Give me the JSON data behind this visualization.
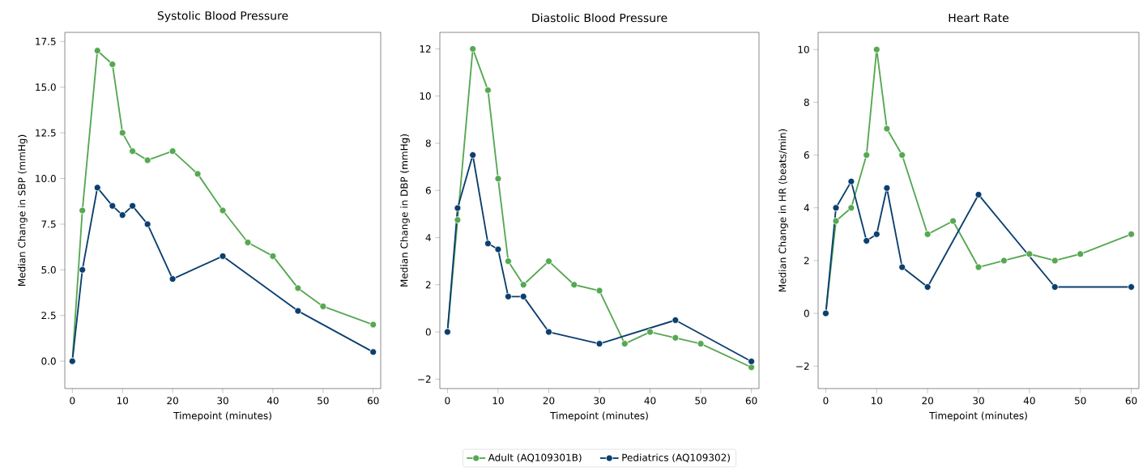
{
  "chart_data": [
    {
      "type": "line",
      "title": "Systolic Blood Pressure",
      "xlabel": "Timepoint (minutes)",
      "ylabel": "Median Change in SBP (mmHg)",
      "xlim": [
        -1.5,
        61.5
      ],
      "xticks": [
        0,
        10,
        20,
        30,
        40,
        50,
        60
      ],
      "ylim": [
        -1.5,
        18
      ],
      "yticks": [
        {
          "value": 0,
          "label": "0.0"
        },
        {
          "value": 2.5,
          "label": "2.5"
        },
        {
          "value": 5,
          "label": "5.0"
        },
        {
          "value": 7.5,
          "label": "7.5"
        },
        {
          "value": 10,
          "label": "10.0"
        },
        {
          "value": 12.5,
          "label": "12.5"
        },
        {
          "value": 15,
          "label": "15.0"
        },
        {
          "value": 17.5,
          "label": "17.5"
        }
      ],
      "marker": "circle",
      "line_style": "solid",
      "grid": false,
      "series": [
        {
          "color": "#56a852",
          "x": [
            0,
            2,
            5,
            8,
            10,
            12,
            15,
            20,
            25,
            30,
            35,
            40,
            45,
            50,
            60
          ],
          "values": [
            0,
            8.25,
            17,
            16.25,
            12.5,
            11.5,
            11,
            11.5,
            10.25,
            8.25,
            6.5,
            5.75,
            4,
            3,
            2
          ]
        },
        {
          "color": "#0b3f6e",
          "x": [
            0,
            2,
            5,
            8,
            10,
            12,
            15,
            20,
            30,
            45,
            60
          ],
          "values": [
            0,
            5,
            9.5,
            8.5,
            8,
            8.5,
            7.5,
            4.5,
            5.75,
            2.75,
            0.5
          ]
        }
      ]
    },
    {
      "type": "line",
      "title": "Diastolic Blood Pressure",
      "xlabel": "Timepoint (minutes)",
      "ylabel": "Median Change in DBP (mmHg)",
      "xlim": [
        -1.5,
        61.5
      ],
      "xticks": [
        0,
        10,
        20,
        30,
        40,
        50,
        60
      ],
      "ylim": [
        -2.4,
        12.7
      ],
      "yticks": [
        {
          "value": -2,
          "label": "−2"
        },
        0,
        2,
        4,
        6,
        8,
        10,
        12
      ],
      "marker": "circle",
      "line_style": "solid",
      "grid": false,
      "legend": "bottom",
      "series": [
        {
          "name": "Adult (AQ109301B)",
          "color": "#56a852",
          "x": [
            0,
            2,
            5,
            8,
            10,
            12,
            15,
            20,
            25,
            30,
            35,
            40,
            45,
            50,
            60
          ],
          "values": [
            0,
            4.75,
            12,
            10.25,
            6.5,
            3,
            2,
            3,
            2,
            1.75,
            -0.5,
            0,
            -0.25,
            -0.5,
            -1.5
          ]
        },
        {
          "name": "Pediatrics (AQ109302)",
          "color": "#0b3f6e",
          "x": [
            0,
            2,
            5,
            8,
            10,
            12,
            15,
            20,
            30,
            45,
            60
          ],
          "values": [
            0,
            5.25,
            7.5,
            3.75,
            3.5,
            1.5,
            1.5,
            0,
            -0.5,
            0.5,
            -1.25
          ]
        }
      ]
    },
    {
      "type": "line",
      "title": "Heart Rate",
      "xlabel": "Timepoint (minutes)",
      "ylabel": "Median Change in HR (beats/min)",
      "xlim": [
        -1.5,
        61.5
      ],
      "xticks": [
        0,
        10,
        20,
        30,
        40,
        50,
        60
      ],
      "ylim": [
        -2.85,
        10.65
      ],
      "yticks": [
        {
          "value": -2,
          "label": "−2"
        },
        0,
        2,
        4,
        6,
        8,
        10
      ],
      "marker": "circle",
      "line_style": "solid",
      "grid": false,
      "series": [
        {
          "color": "#56a852",
          "x": [
            0,
            2,
            5,
            8,
            10,
            12,
            15,
            20,
            25,
            30,
            35,
            40,
            45,
            50,
            60
          ],
          "values": [
            0,
            3.5,
            4,
            6,
            10,
            7,
            6,
            3,
            3.5,
            1.75,
            2,
            2.25,
            2,
            2.25,
            3
          ]
        },
        {
          "color": "#0b3f6e",
          "x": [
            0,
            2,
            5,
            8,
            10,
            12,
            15,
            20,
            30,
            45,
            60
          ],
          "values": [
            0,
            4,
            5,
            2.75,
            3,
            4.75,
            1.75,
            1,
            4.5,
            1,
            1
          ]
        }
      ]
    }
  ]
}
